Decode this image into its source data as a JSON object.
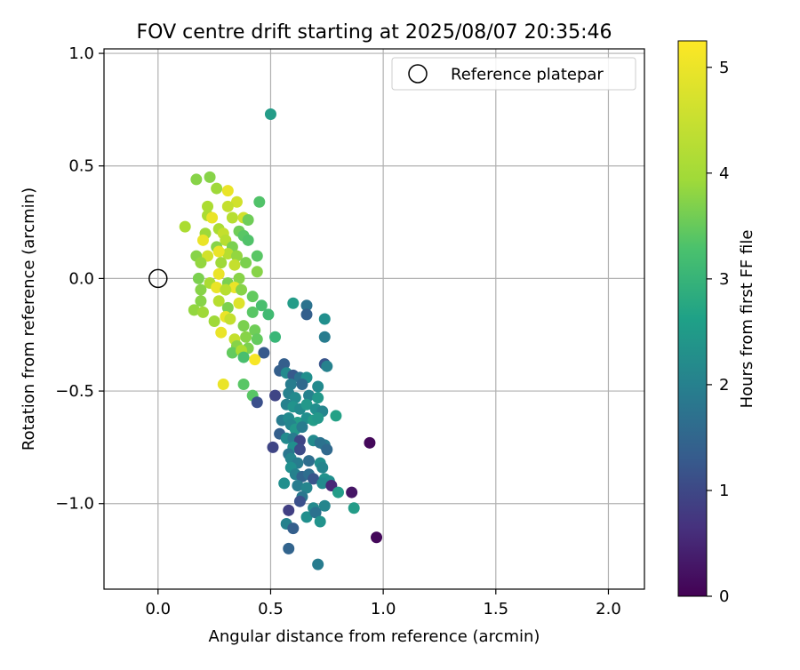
{
  "chart_data": {
    "type": "scatter",
    "title": "FOV centre drift starting at 2025/08/07 20:35:46",
    "xlabel": "Angular distance from reference (arcmin)",
    "ylabel": "Rotation from reference (arcmin)",
    "xlim": [
      -0.24,
      2.16
    ],
    "ylim": [
      -1.38,
      1.02
    ],
    "xticks": [
      0.0,
      0.5,
      1.0,
      1.5,
      2.0
    ],
    "xtick_labels": [
      "0.0",
      "0.5",
      "1.0",
      "1.5",
      "2.0"
    ],
    "yticks": [
      1.0,
      0.5,
      0.0,
      -0.5,
      -1.0
    ],
    "ytick_labels": [
      "1.0",
      "0.5",
      "0.0",
      "−0.5",
      "−1.0"
    ],
    "grid": true,
    "legend_position": "top-right",
    "colormap": "viridis",
    "colorbar": {
      "label": "Hours from first FF file",
      "min": 0,
      "max": 5.25,
      "ticks": [
        0,
        1,
        2,
        3,
        4,
        5
      ],
      "tick_labels": [
        "0",
        "1",
        "2",
        "3",
        "4",
        "5"
      ]
    },
    "reference": {
      "name": "Reference platepar",
      "x": 0.0,
      "y": 0.0
    },
    "points": [
      [
        0.5,
        0.73,
        2.9
      ],
      [
        0.17,
        0.44,
        4.3
      ],
      [
        0.23,
        0.45,
        4.3
      ],
      [
        0.26,
        0.4,
        4.5
      ],
      [
        0.31,
        0.39,
        5.1
      ],
      [
        0.35,
        0.34,
        4.9
      ],
      [
        0.45,
        0.34,
        3.8
      ],
      [
        0.22,
        0.32,
        4.6
      ],
      [
        0.31,
        0.32,
        4.8
      ],
      [
        0.22,
        0.28,
        4.6
      ],
      [
        0.24,
        0.27,
        5.1
      ],
      [
        0.33,
        0.27,
        4.7
      ],
      [
        0.38,
        0.27,
        4.9
      ],
      [
        0.4,
        0.26,
        4.1
      ],
      [
        0.12,
        0.23,
        4.6
      ],
      [
        0.27,
        0.22,
        4.6
      ],
      [
        0.29,
        0.2,
        4.8
      ],
      [
        0.21,
        0.2,
        4.5
      ],
      [
        0.36,
        0.21,
        4.1
      ],
      [
        0.38,
        0.19,
        3.9
      ],
      [
        0.4,
        0.17,
        3.8
      ],
      [
        0.2,
        0.17,
        5.1
      ],
      [
        0.3,
        0.17,
        4.7
      ],
      [
        0.33,
        0.14,
        4.2
      ],
      [
        0.26,
        0.14,
        4.3
      ],
      [
        0.31,
        0.11,
        4.7
      ],
      [
        0.17,
        0.1,
        4.3
      ],
      [
        0.22,
        0.1,
        4.9
      ],
      [
        0.27,
        0.12,
        5.1
      ],
      [
        0.44,
        0.1,
        3.9
      ],
      [
        0.35,
        0.1,
        4.4
      ],
      [
        0.28,
        0.07,
        4.5
      ],
      [
        0.34,
        0.06,
        4.8
      ],
      [
        0.39,
        0.07,
        4.2
      ],
      [
        0.19,
        0.07,
        4.4
      ],
      [
        0.44,
        0.03,
        4.3
      ],
      [
        0.27,
        0.02,
        5.1
      ],
      [
        0.18,
        0.0,
        4.2
      ],
      [
        0.36,
        0.0,
        4.3
      ],
      [
        0.23,
        -0.02,
        4.6
      ],
      [
        0.31,
        -0.02,
        4.2
      ],
      [
        0.26,
        -0.04,
        5.1
      ],
      [
        0.34,
        -0.04,
        5.1
      ],
      [
        0.19,
        -0.05,
        4.3
      ],
      [
        0.37,
        -0.05,
        4.3
      ],
      [
        0.3,
        -0.05,
        4.7
      ],
      [
        0.42,
        -0.08,
        4.0
      ],
      [
        0.27,
        -0.1,
        4.7
      ],
      [
        0.19,
        -0.1,
        4.3
      ],
      [
        0.36,
        -0.11,
        5.0
      ],
      [
        0.46,
        -0.12,
        3.7
      ],
      [
        0.31,
        -0.13,
        4.2
      ],
      [
        0.42,
        -0.15,
        3.9
      ],
      [
        0.16,
        -0.14,
        4.4
      ],
      [
        0.2,
        -0.15,
        4.5
      ],
      [
        0.49,
        -0.16,
        3.6
      ],
      [
        0.3,
        -0.17,
        5.1
      ],
      [
        0.32,
        -0.18,
        4.8
      ],
      [
        0.25,
        -0.19,
        4.5
      ],
      [
        0.38,
        -0.21,
        4.2
      ],
      [
        0.43,
        -0.23,
        4.1
      ],
      [
        0.28,
        -0.24,
        5.1
      ],
      [
        0.39,
        -0.26,
        4.3
      ],
      [
        0.52,
        -0.26,
        3.5
      ],
      [
        0.34,
        -0.27,
        4.8
      ],
      [
        0.44,
        -0.27,
        4.0
      ],
      [
        0.35,
        -0.3,
        4.3
      ],
      [
        0.4,
        -0.31,
        4.2
      ],
      [
        0.33,
        -0.33,
        4.0
      ],
      [
        0.37,
        -0.32,
        4.6
      ],
      [
        0.47,
        -0.33,
        1.5
      ],
      [
        0.38,
        -0.35,
        3.7
      ],
      [
        0.43,
        -0.36,
        5.2
      ],
      [
        0.29,
        -0.47,
        5.1
      ],
      [
        0.38,
        -0.47,
        3.9
      ],
      [
        0.42,
        -0.52,
        3.9
      ],
      [
        0.44,
        -0.55,
        1.3
      ],
      [
        0.6,
        -0.11,
        2.9
      ],
      [
        0.66,
        -0.12,
        2.0
      ],
      [
        0.66,
        -0.16,
        1.6
      ],
      [
        0.74,
        -0.18,
        2.6
      ],
      [
        0.74,
        -0.26,
        2.2
      ],
      [
        0.74,
        -0.38,
        1.4
      ],
      [
        0.75,
        -0.39,
        2.3
      ],
      [
        0.56,
        -0.38,
        1.6
      ],
      [
        0.54,
        -0.41,
        1.6
      ],
      [
        0.57,
        -0.42,
        2.5
      ],
      [
        0.6,
        -0.43,
        1.5
      ],
      [
        0.63,
        -0.44,
        2.0
      ],
      [
        0.66,
        -0.44,
        2.6
      ],
      [
        0.59,
        -0.47,
        2.2
      ],
      [
        0.64,
        -0.47,
        1.8
      ],
      [
        0.71,
        -0.48,
        2.5
      ],
      [
        0.52,
        -0.52,
        1.1
      ],
      [
        0.58,
        -0.51,
        2.3
      ],
      [
        0.61,
        -0.53,
        2.5
      ],
      [
        0.67,
        -0.52,
        2.3
      ],
      [
        0.71,
        -0.53,
        2.8
      ],
      [
        0.57,
        -0.56,
        2.3
      ],
      [
        0.6,
        -0.57,
        2.7
      ],
      [
        0.63,
        -0.58,
        2.5
      ],
      [
        0.66,
        -0.56,
        2.8
      ],
      [
        0.7,
        -0.58,
        2.6
      ],
      [
        0.73,
        -0.59,
        2.4
      ],
      [
        0.79,
        -0.61,
        3.0
      ],
      [
        0.55,
        -0.63,
        2.2
      ],
      [
        0.58,
        -0.62,
        2.5
      ],
      [
        0.62,
        -0.64,
        2.9
      ],
      [
        0.66,
        -0.62,
        2.6
      ],
      [
        0.69,
        -0.63,
        2.9
      ],
      [
        0.71,
        -0.62,
        2.8
      ],
      [
        0.59,
        -0.65,
        2.4
      ],
      [
        0.61,
        -0.67,
        2.8
      ],
      [
        0.64,
        -0.66,
        2.2
      ],
      [
        0.54,
        -0.69,
        1.6
      ],
      [
        0.57,
        -0.71,
        2.5
      ],
      [
        0.6,
        -0.71,
        2.2
      ],
      [
        0.63,
        -0.72,
        1.1
      ],
      [
        0.69,
        -0.72,
        2.5
      ],
      [
        0.74,
        -0.74,
        2.2
      ],
      [
        0.72,
        -0.73,
        2.0
      ],
      [
        0.94,
        -0.73,
        0.1
      ],
      [
        0.51,
        -0.75,
        1.1
      ],
      [
        0.6,
        -0.75,
        2.6
      ],
      [
        0.63,
        -0.76,
        1.2
      ],
      [
        0.75,
        -0.76,
        1.8
      ],
      [
        0.58,
        -0.78,
        2.1
      ],
      [
        0.59,
        -0.8,
        2.4
      ],
      [
        0.62,
        -0.82,
        2.2
      ],
      [
        0.67,
        -0.81,
        1.9
      ],
      [
        0.72,
        -0.82,
        2.6
      ],
      [
        0.73,
        -0.84,
        2.4
      ],
      [
        0.59,
        -0.84,
        2.6
      ],
      [
        0.61,
        -0.87,
        2.3
      ],
      [
        0.64,
        -0.88,
        1.7
      ],
      [
        0.67,
        -0.87,
        1.9
      ],
      [
        0.69,
        -0.89,
        1.4
      ],
      [
        0.74,
        -0.89,
        2.7
      ],
      [
        0.76,
        -0.9,
        2.6
      ],
      [
        0.56,
        -0.91,
        2.6
      ],
      [
        0.62,
        -0.92,
        2.2
      ],
      [
        0.66,
        -0.93,
        2.4
      ],
      [
        0.73,
        -0.91,
        2.5
      ],
      [
        0.77,
        -0.92,
        0.6
      ],
      [
        0.86,
        -0.95,
        0.3
      ],
      [
        0.8,
        -0.95,
        2.9
      ],
      [
        0.64,
        -0.97,
        2.1
      ],
      [
        0.63,
        -0.99,
        1.3
      ],
      [
        0.58,
        -1.03,
        1.0
      ],
      [
        0.69,
        -1.02,
        2.5
      ],
      [
        0.74,
        -1.01,
        2.4
      ],
      [
        0.87,
        -1.02,
        2.9
      ],
      [
        0.66,
        -1.06,
        2.6
      ],
      [
        0.7,
        -1.04,
        2.0
      ],
      [
        0.72,
        -1.08,
        2.7
      ],
      [
        0.57,
        -1.09,
        2.3
      ],
      [
        0.6,
        -1.11,
        1.6
      ],
      [
        0.97,
        -1.15,
        0.1
      ],
      [
        0.58,
        -1.2,
        1.7
      ],
      [
        0.71,
        -1.27,
        2.2
      ]
    ]
  }
}
